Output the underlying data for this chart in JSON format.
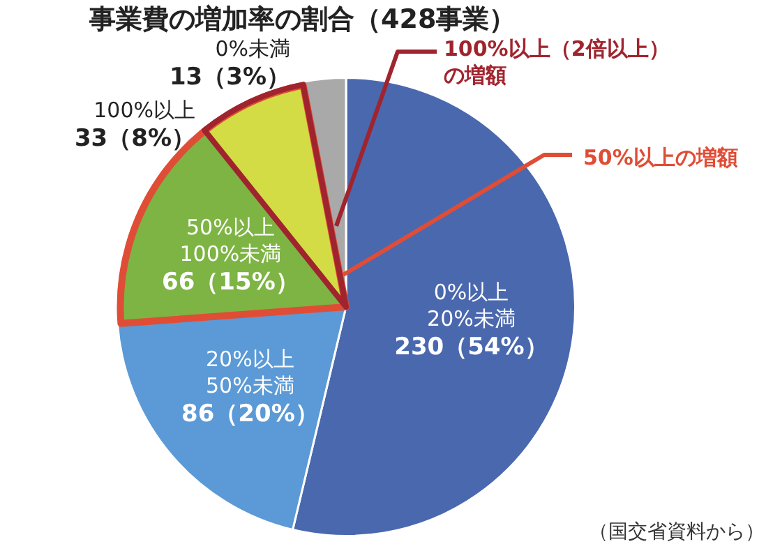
{
  "chart_data": {
    "type": "pie",
    "title": "事業費の増加率の割合（428事業）",
    "categories": [
      "0%以上\n20%未満",
      "20%以上\n50%未満",
      "50%以上\n100%未満",
      "100%以上",
      "0%未満"
    ],
    "values": [
      230,
      86,
      66,
      33,
      13
    ],
    "value_labels": [
      "230（54%）",
      "86（20%）",
      "66（15%）",
      "33（8%）",
      "13（3%）"
    ],
    "colors": [
      "#4a68ae",
      "#5b9ad6",
      "#7db443",
      "#d3dc45",
      "#a9a9a9"
    ],
    "annotations": [
      "100%以上（2倍以上）の増額",
      "50%以上の増額",
      "（国交省資料から）"
    ],
    "legend": false
  }
}
